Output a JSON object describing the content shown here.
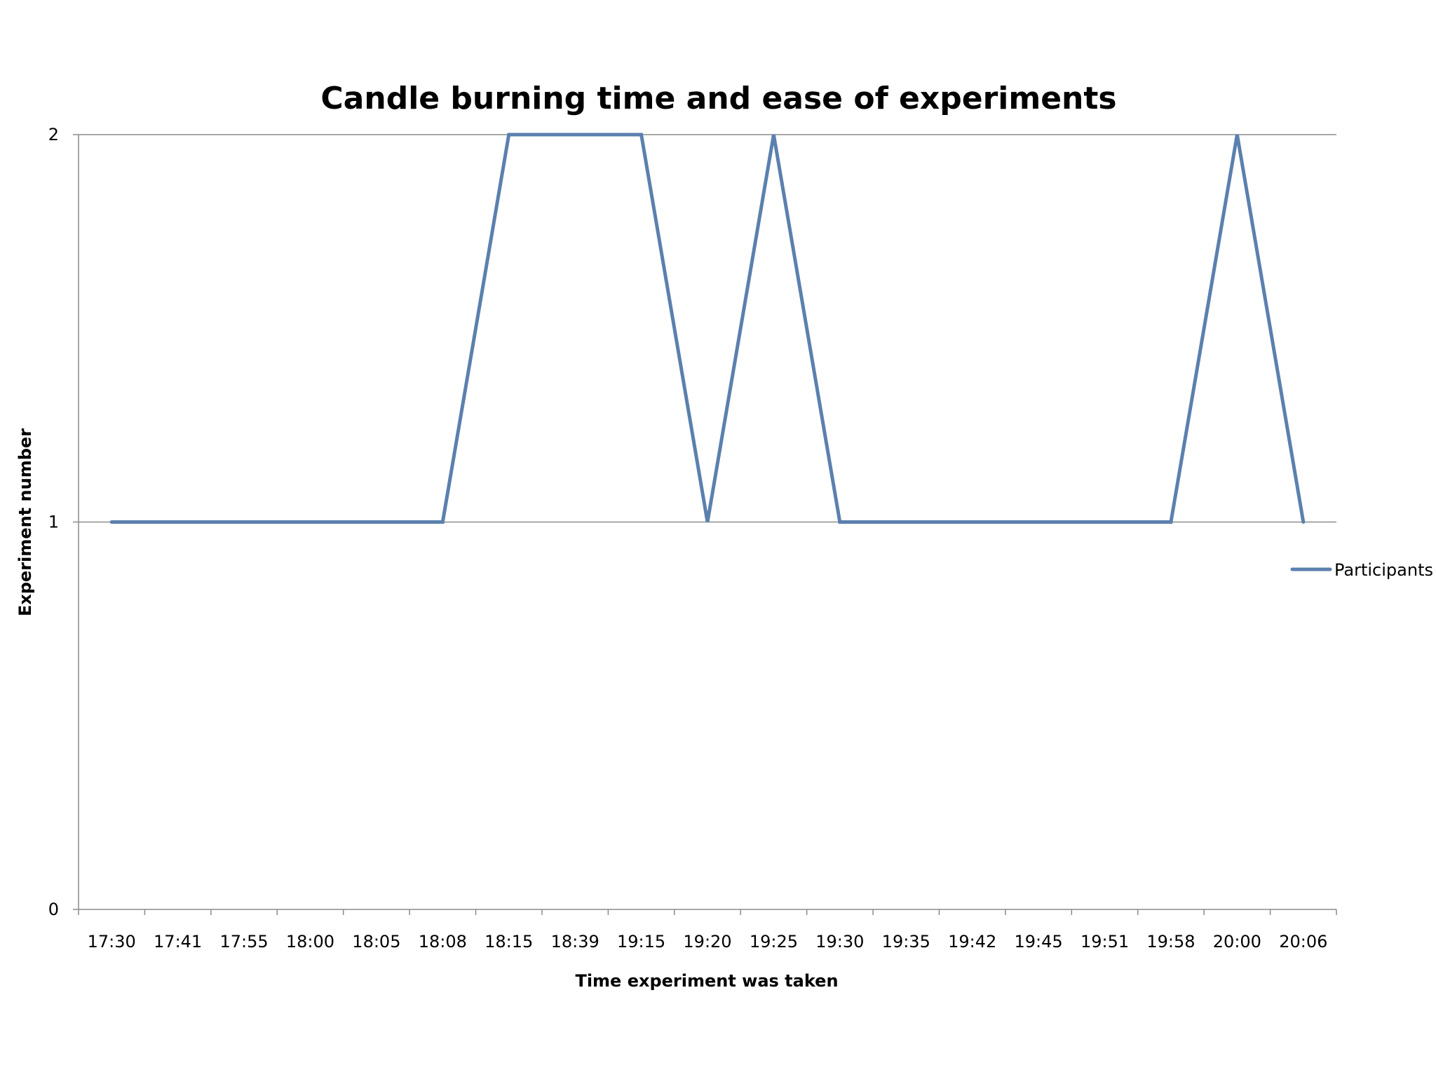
{
  "chart_data": {
    "type": "line",
    "title": "Candle burning time and ease of experiments",
    "xlabel": "Time experiment was taken",
    "ylabel": "Experiment number",
    "categories": [
      "17:30",
      "17:41",
      "17:55",
      "18:00",
      "18:05",
      "18:08",
      "18:15",
      "18:39",
      "19:15",
      "19:20",
      "19:25",
      "19:30",
      "19:35",
      "19:42",
      "19:45",
      "19:51",
      "19:58",
      "20:00",
      "20:06"
    ],
    "series": [
      {
        "name": "Participants",
        "values": [
          1,
          1,
          1,
          1,
          1,
          1,
          2,
          2,
          2,
          1,
          2,
          1,
          1,
          1,
          1,
          1,
          1,
          2,
          1
        ],
        "color": "#5B80AE"
      }
    ],
    "ylim": [
      0,
      2
    ],
    "yticks": [
      "0",
      "1",
      "2"
    ],
    "grid": {
      "y": true,
      "x": false
    },
    "legend_position": "right",
    "colors": {
      "gridline": "#8C8C8C",
      "axis": "#8C8C8C",
      "text": "#000000"
    }
  }
}
